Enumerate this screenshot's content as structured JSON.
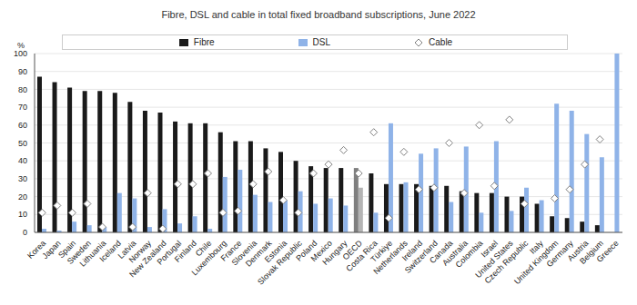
{
  "chart_data": {
    "type": "bar",
    "title": "Fibre, DSL and cable in total fixed broadband subscriptions, June 2022",
    "y_label": "%",
    "categories": [
      "Korea",
      "Japan",
      "Spain",
      "Sweden",
      "Lithuania",
      "Iceland",
      "Latvia",
      "Norway",
      "New Zealand",
      "Portugal",
      "Finland",
      "Chile",
      "Luxembourg",
      "France",
      "Slovenia",
      "Denmark",
      "Estonia",
      "Slovak Republic",
      "Poland",
      "Mexico",
      "Hungary",
      "OECD",
      "Costa Rica",
      "Türkiye",
      "Netherlands",
      "Ireland",
      "Switzerland",
      "Canada",
      "Australia",
      "Colombia",
      "Israel",
      "United States",
      "Czech Republic",
      "Italy",
      "United Kingdom",
      "Germany",
      "Austria",
      "Belgium",
      "Greece"
    ],
    "series": [
      {
        "name": "Fibre",
        "type": "bar",
        "color": "#1a1a1a",
        "colors": [
          "#1a1a1a",
          "#1a1a1a",
          "#1a1a1a",
          "#1a1a1a",
          "#1a1a1a",
          "#1a1a1a",
          "#1a1a1a",
          "#1a1a1a",
          "#1a1a1a",
          "#1a1a1a",
          "#1a1a1a",
          "#1a1a1a",
          "#1a1a1a",
          "#1a1a1a",
          "#1a1a1a",
          "#1a1a1a",
          "#1a1a1a",
          "#1a1a1a",
          "#1a1a1a",
          "#1a1a1a",
          "#1a1a1a",
          "#7f7f7f",
          "#1a1a1a",
          "#1a1a1a",
          "#1a1a1a",
          "#1a1a1a",
          "#1a1a1a",
          "#1a1a1a",
          "#1a1a1a",
          "#1a1a1a",
          "#1a1a1a",
          "#1a1a1a",
          "#1a1a1a",
          "#1a1a1a",
          "#1a1a1a",
          "#1a1a1a",
          "#1a1a1a",
          "#1a1a1a",
          "#1a1a1a"
        ],
        "values": [
          87,
          84,
          81,
          79,
          79,
          78,
          73,
          68,
          67,
          62,
          61,
          61,
          56,
          51,
          51,
          47,
          45,
          40,
          37,
          36,
          36,
          36,
          33,
          27,
          27,
          27,
          26,
          26,
          23,
          22,
          22,
          20,
          20,
          16,
          9,
          8,
          6,
          4,
          0
        ]
      },
      {
        "name": "DSL",
        "type": "bar",
        "color": "#8fb3e8",
        "colors": [
          "#8fb3e8",
          "#8fb3e8",
          "#8fb3e8",
          "#8fb3e8",
          "#8fb3e8",
          "#8fb3e8",
          "#8fb3e8",
          "#8fb3e8",
          "#8fb3e8",
          "#8fb3e8",
          "#8fb3e8",
          "#8fb3e8",
          "#8fb3e8",
          "#8fb3e8",
          "#8fb3e8",
          "#8fb3e8",
          "#8fb3e8",
          "#8fb3e8",
          "#8fb3e8",
          "#8fb3e8",
          "#8fb3e8",
          "#b4b4b4",
          "#8fb3e8",
          "#8fb3e8",
          "#8fb3e8",
          "#8fb3e8",
          "#8fb3e8",
          "#8fb3e8",
          "#8fb3e8",
          "#8fb3e8",
          "#8fb3e8",
          "#8fb3e8",
          "#8fb3e8",
          "#8fb3e8",
          "#8fb3e8",
          "#8fb3e8",
          "#8fb3e8",
          "#8fb3e8",
          "#8fb3e8"
        ],
        "values": [
          2,
          1,
          6,
          4,
          3,
          22,
          19,
          3,
          13,
          5,
          9,
          2,
          31,
          35,
          21,
          17,
          18,
          23,
          16,
          19,
          15,
          25,
          11,
          61,
          28,
          44,
          47,
          17,
          48,
          11,
          51,
          12,
          25,
          18,
          72,
          68,
          55,
          42,
          100
        ]
      },
      {
        "name": "Cable",
        "type": "scatter",
        "marker": "diamond",
        "color": "#ffffff",
        "values": [
          11,
          15,
          11,
          16,
          3,
          null,
          3,
          22,
          2,
          27,
          27,
          33,
          11,
          12,
          27,
          34,
          18,
          11,
          33,
          38,
          46,
          33,
          56,
          8,
          45,
          24,
          25,
          50,
          22,
          60,
          26,
          63,
          16,
          null,
          19,
          24,
          38,
          52,
          null
        ]
      }
    ],
    "ylim": [
      0,
      100
    ],
    "yticks": [
      0,
      10,
      20,
      30,
      40,
      50,
      60,
      70,
      80,
      90,
      100
    ],
    "grid": true,
    "legend": "top"
  }
}
